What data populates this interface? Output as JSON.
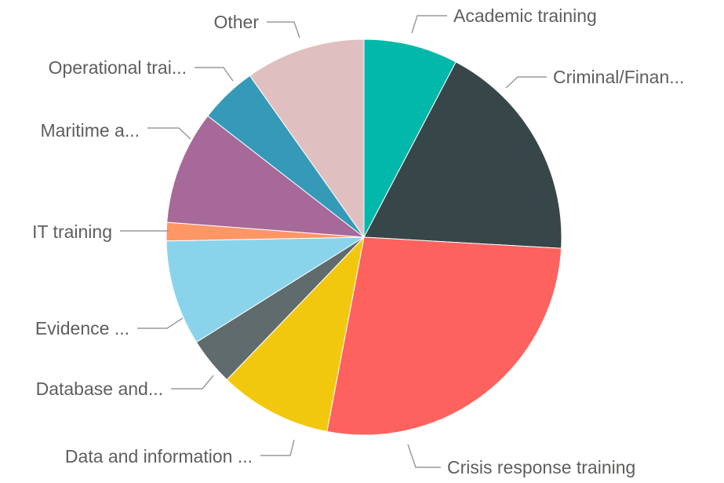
{
  "chart_data": {
    "type": "pie",
    "categories": [
      "Academic training",
      "Criminal/Finan...",
      "Crisis response training",
      "Data and information ...",
      "Database and...",
      "Evidence ...",
      "IT training",
      "Maritime a...",
      "Operational trai...",
      "Other"
    ],
    "values": [
      7.7,
      18.2,
      27.1,
      9.2,
      3.9,
      8.6,
      1.5,
      9.3,
      4.7,
      9.8
    ],
    "colors": [
      "#01B8AA",
      "#374649",
      "#FD625E",
      "#F2C80F",
      "#5F6B6D",
      "#8AD4EB",
      "#FE9666",
      "#A66999",
      "#3599B8",
      "#DFBFBF"
    ]
  }
}
